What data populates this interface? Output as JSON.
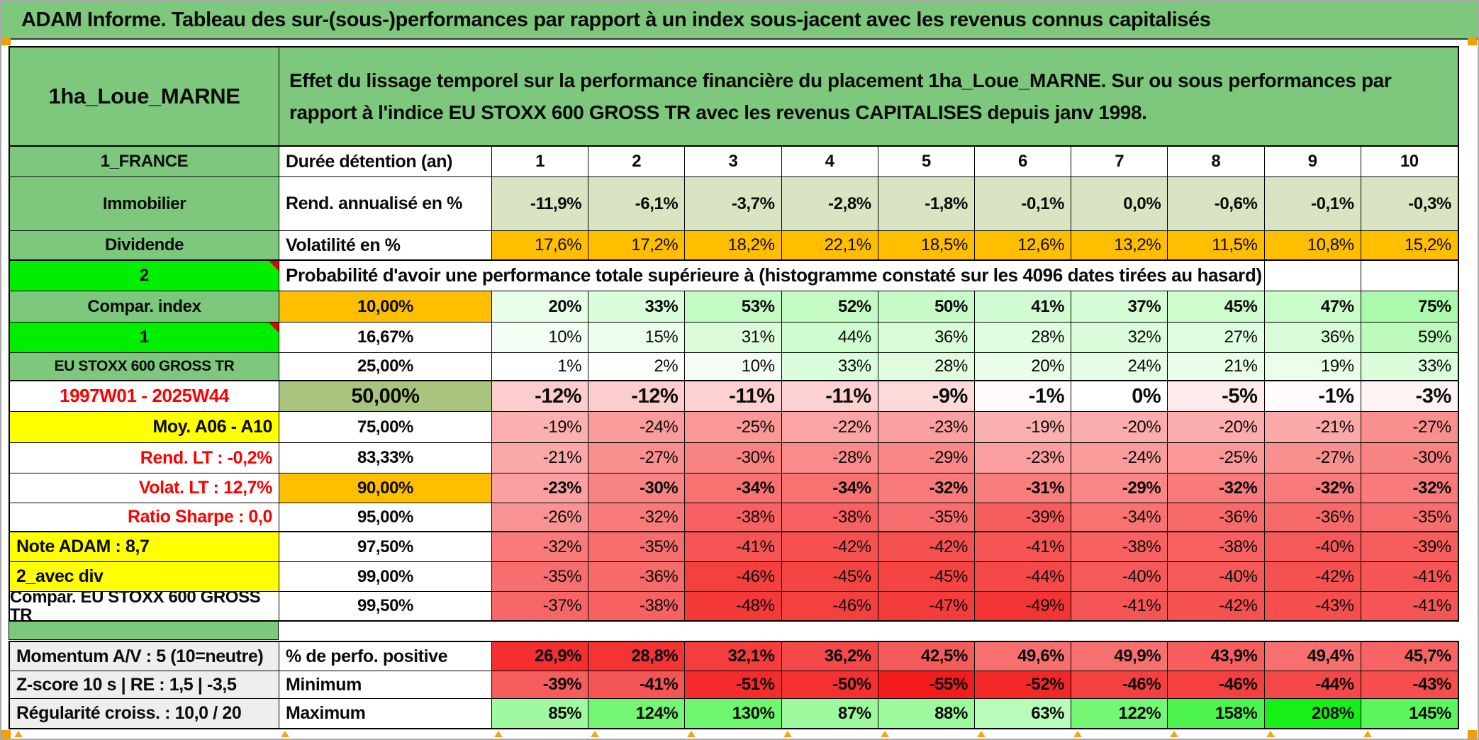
{
  "title": "ADAM Informe. Tableau des sur-(sous-)performances par rapport à un index sous-jacent avec les revenus connus capitalisés",
  "header": {
    "name": "1ha_Loue_MARNE",
    "description": "Effet du lissage temporel sur la performance financière du placement 1ha_Loue_MARNE. Sur ou sous performances par rapport à l'indice EU STOXX 600 GROSS TR avec les revenus CAPITALISES depuis janv 1998."
  },
  "palette": {
    "green": "#7dc87d",
    "bright_green": "#00ee00",
    "olive": "#a9c47f",
    "sage": "#d9e5c2",
    "orange": "#ffbe00",
    "yellow": "#ffff00",
    "gray_label": "#eeeeee",
    "red_text": "#fd0000",
    "marker_orange": "#f2a007"
  },
  "sheet": {
    "columns": [
      "1",
      "2",
      "3",
      "4",
      "5",
      "6",
      "7",
      "8",
      "9",
      "10"
    ],
    "rows": [
      {
        "left": {
          "t": "1_FRANCE",
          "variant": "green"
        },
        "head": {
          "t": "Durée détention (an)",
          "variant": "plainL"
        },
        "type": "plain",
        "bold": true,
        "align": "ac",
        "values": [
          "1",
          "2",
          "3",
          "4",
          "5",
          "6",
          "7",
          "8",
          "9",
          "10"
        ]
      },
      {
        "left": {
          "t": "Immobilier",
          "variant": "green"
        },
        "head": {
          "t": "Rend. annualisé en %",
          "variant": "plainL"
        },
        "type": "sage",
        "bold": true,
        "values": [
          "-11,9%",
          "-6,1%",
          "-3,7%",
          "-2,8%",
          "-1,8%",
          "-0,1%",
          "0,0%",
          "-0,6%",
          "-0,1%",
          "-0,3%"
        ]
      },
      {
        "left": {
          "t": "Dividende",
          "variant": "green"
        },
        "head": {
          "t": "Volatilité en %",
          "variant": "plainL"
        },
        "type": "orange",
        "bold": false,
        "hb": true,
        "values": [
          "17,6%",
          "17,2%",
          "18,2%",
          "22,1%",
          "18,5%",
          "12,6%",
          "13,2%",
          "11,5%",
          "10,8%",
          "15,2%"
        ]
      },
      {
        "left": {
          "t": "2",
          "variant": "bright"
        },
        "span": {
          "t": "Probabilité d'avoir une performance totale supérieure à (histogramme constaté sur les 4096 dates tirées au hasard)"
        },
        "empty": 2
      },
      {
        "left": {
          "t": "Compar. index",
          "variant": "green"
        },
        "head": {
          "t": "10,00%",
          "variant": "orange"
        },
        "type": "scale",
        "bold": true,
        "values": [
          "20%",
          "33%",
          "53%",
          "52%",
          "50%",
          "41%",
          "37%",
          "45%",
          "47%",
          "75%"
        ]
      },
      {
        "left": {
          "t": "1",
          "variant": "bright"
        },
        "head": {
          "t": "16,67%",
          "variant": "white"
        },
        "type": "scale",
        "bold": false,
        "values": [
          "10%",
          "15%",
          "31%",
          "44%",
          "36%",
          "28%",
          "32%",
          "27%",
          "36%",
          "59%"
        ]
      },
      {
        "left": {
          "t": "EU STOXX 600 GROSS TR",
          "variant": "green-sm"
        },
        "head": {
          "t": "25,00%",
          "variant": "white"
        },
        "type": "scale",
        "bold": false,
        "hb": true,
        "values": [
          "1%",
          "2%",
          "10%",
          "33%",
          "28%",
          "20%",
          "24%",
          "21%",
          "19%",
          "33%"
        ]
      },
      {
        "left": {
          "t": "1997W01 - 2025W44",
          "variant": "red-date"
        },
        "head": {
          "t": "50,00%",
          "variant": "olive"
        },
        "type": "scale",
        "bold": true,
        "big": true,
        "values": [
          "-12%",
          "-12%",
          "-11%",
          "-11%",
          "-9%",
          "-1%",
          "0%",
          "-5%",
          "-1%",
          "-3%"
        ]
      },
      {
        "left": {
          "t": "Moy. A06 - A10",
          "variant": "yellow-right"
        },
        "head": {
          "t": "75,00%",
          "variant": "white"
        },
        "type": "scale",
        "bold": false,
        "values": [
          "-19%",
          "-24%",
          "-25%",
          "-22%",
          "-23%",
          "-19%",
          "-20%",
          "-20%",
          "-21%",
          "-27%"
        ]
      },
      {
        "left": {
          "t": "Rend. LT :   -0,2%",
          "variant": "red-right"
        },
        "head": {
          "t": "83,33%",
          "variant": "white"
        },
        "type": "scale",
        "bold": false,
        "values": [
          "-21%",
          "-27%",
          "-30%",
          "-28%",
          "-29%",
          "-23%",
          "-24%",
          "-25%",
          "-27%",
          "-30%"
        ]
      },
      {
        "left": {
          "t": "Volat. LT :   12,7%",
          "variant": "red-right"
        },
        "head": {
          "t": "90,00%",
          "variant": "orange"
        },
        "type": "scale",
        "bold": true,
        "values": [
          "-23%",
          "-30%",
          "-34%",
          "-34%",
          "-32%",
          "-31%",
          "-29%",
          "-32%",
          "-32%",
          "-32%"
        ]
      },
      {
        "left": {
          "t": "Ratio Sharpe :   0,0",
          "variant": "red-right"
        },
        "head": {
          "t": "95,00%",
          "variant": "white"
        },
        "type": "scale",
        "bold": false,
        "hb": true,
        "values": [
          "-26%",
          "-32%",
          "-38%",
          "-38%",
          "-35%",
          "-39%",
          "-34%",
          "-36%",
          "-36%",
          "-35%"
        ]
      },
      {
        "left": {
          "t": "Note ADAM : 8,7",
          "variant": "yellow-left"
        },
        "head": {
          "t": "97,50%",
          "variant": "white"
        },
        "type": "scale",
        "bold": false,
        "values": [
          "-32%",
          "-35%",
          "-41%",
          "-42%",
          "-42%",
          "-41%",
          "-38%",
          "-38%",
          "-40%",
          "-39%"
        ]
      },
      {
        "left": {
          "t": "2_avec div",
          "variant": "yellow-left"
        },
        "head": {
          "t": "99,00%",
          "variant": "white"
        },
        "type": "scale",
        "bold": false,
        "values": [
          "-35%",
          "-36%",
          "-46%",
          "-45%",
          "-45%",
          "-44%",
          "-40%",
          "-40%",
          "-42%",
          "-41%"
        ]
      },
      {
        "left": {
          "t": "Compar. EU STOXX 600 GROSS TR",
          "variant": "white-right"
        },
        "head": {
          "t": "99,50%",
          "variant": "white"
        },
        "type": "scale",
        "bold": false,
        "values": [
          "-37%",
          "-38%",
          "-48%",
          "-46%",
          "-47%",
          "-49%",
          "-41%",
          "-42%",
          "-43%",
          "-41%"
        ]
      }
    ],
    "bottom": [
      {
        "left": {
          "t": "Momentum A/V : 5 (10=neutre)",
          "variant": "gray"
        },
        "head": {
          "t": "% de perfo. positive",
          "variant": "plainL"
        },
        "type": "perfo",
        "bold": true,
        "values": [
          "26,9%",
          "28,8%",
          "32,1%",
          "36,2%",
          "42,5%",
          "49,6%",
          "49,9%",
          "43,9%",
          "49,4%",
          "45,7%"
        ]
      },
      {
        "left": {
          "t": "Z-score 10 s | RE : 1,5 | -3,5",
          "variant": "gray"
        },
        "head": {
          "t": "Minimum",
          "variant": "plainL"
        },
        "type": "scale",
        "bold": true,
        "values": [
          "-39%",
          "-41%",
          "-51%",
          "-50%",
          "-55%",
          "-52%",
          "-46%",
          "-46%",
          "-44%",
          "-43%"
        ]
      },
      {
        "left": {
          "t": "Régularité croiss. : 10,0 / 20",
          "variant": "gray"
        },
        "head": {
          "t": "Maximum",
          "variant": "plainL"
        },
        "type": "scale",
        "bold": true,
        "values": [
          "85%",
          "124%",
          "130%",
          "87%",
          "88%",
          "63%",
          "122%",
          "158%",
          "208%",
          "145%"
        ]
      }
    ]
  }
}
